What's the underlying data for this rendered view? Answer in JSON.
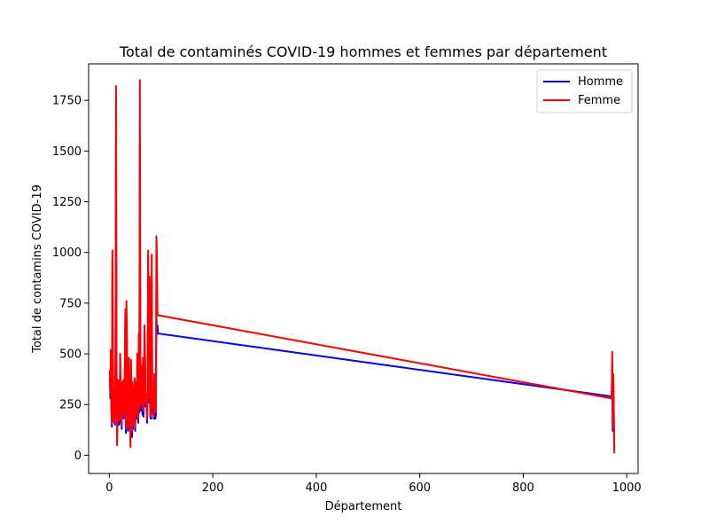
{
  "chart_data": {
    "type": "line",
    "title": "Total de contaminés COVID-19 hommes et femmes par département",
    "xlabel": "Département",
    "ylabel": "Total de contamins COVID-19",
    "xlim": [
      -40,
      1022
    ],
    "ylim": [
      -90,
      1930
    ],
    "xticks": [
      0,
      200,
      400,
      600,
      800,
      1000
    ],
    "yticks": [
      0,
      250,
      500,
      750,
      1000,
      1250,
      1500,
      1750
    ],
    "grid": false,
    "legend_position": "top-right",
    "series": [
      {
        "name": "Homme",
        "color": "#0000ff",
        "x": [
          1,
          2,
          3,
          4,
          5,
          6,
          7,
          8,
          9,
          10,
          11,
          12,
          13,
          14,
          15,
          16,
          17,
          18,
          19,
          20,
          21,
          22,
          23,
          24,
          25,
          26,
          27,
          28,
          29,
          30,
          31,
          32,
          33,
          34,
          35,
          36,
          37,
          38,
          39,
          40,
          41,
          42,
          43,
          44,
          45,
          46,
          47,
          48,
          49,
          50,
          51,
          52,
          53,
          54,
          55,
          56,
          57,
          58,
          59,
          60,
          61,
          62,
          63,
          64,
          65,
          66,
          67,
          68,
          69,
          70,
          71,
          72,
          73,
          74,
          75,
          76,
          77,
          78,
          79,
          80,
          81,
          82,
          83,
          84,
          85,
          86,
          87,
          88,
          89,
          90,
          91,
          92,
          93,
          94,
          95,
          971,
          972,
          973,
          974,
          976
        ],
        "values": [
          380,
          280,
          450,
          210,
          140,
          950,
          480,
          170,
          180,
          300,
          150,
          520,
          1540,
          400,
          110,
          200,
          340,
          180,
          150,
          160,
          480,
          200,
          220,
          130,
          350,
          260,
          340,
          180,
          270,
          400,
          680,
          110,
          620,
          580,
          210,
          120,
          310,
          440,
          190,
          130,
          100,
          430,
          180,
          90,
          330,
          130,
          280,
          170,
          350,
          120,
          320,
          230,
          180,
          470,
          200,
          160,
          550,
          210,
          1540,
          390,
          220,
          330,
          410,
          200,
          450,
          190,
          270,
          560,
          470,
          240,
          250,
          280,
          160,
          310,
          980,
          260,
          420,
          840,
          200,
          180,
          180,
          860,
          280,
          210,
          210,
          180,
          380,
          300,
          180,
          200,
          690,
          600,
          640,
          600,
          600,
          290,
          450,
          120,
          380,
          30
        ]
      },
      {
        "name": "Femme",
        "color": "#ff0000",
        "x": [
          1,
          2,
          3,
          4,
          5,
          6,
          7,
          8,
          9,
          10,
          11,
          12,
          13,
          14,
          15,
          16,
          17,
          18,
          19,
          20,
          21,
          22,
          23,
          24,
          25,
          26,
          27,
          28,
          29,
          30,
          31,
          32,
          33,
          34,
          35,
          36,
          37,
          38,
          39,
          40,
          41,
          42,
          43,
          44,
          45,
          46,
          47,
          48,
          49,
          50,
          51,
          52,
          53,
          54,
          55,
          56,
          57,
          58,
          59,
          60,
          61,
          62,
          63,
          64,
          65,
          66,
          67,
          68,
          69,
          70,
          71,
          72,
          73,
          74,
          75,
          76,
          77,
          78,
          79,
          80,
          81,
          82,
          83,
          84,
          85,
          86,
          87,
          88,
          89,
          90,
          91,
          92,
          93,
          94,
          95,
          971,
          972,
          973,
          974,
          976
        ],
        "values": [
          420,
          300,
          520,
          240,
          160,
          1010,
          500,
          200,
          160,
          330,
          170,
          560,
          1820,
          450,
          50,
          230,
          370,
          200,
          170,
          180,
          500,
          230,
          250,
          150,
          360,
          300,
          370,
          200,
          300,
          430,
          720,
          130,
          760,
          620,
          230,
          140,
          350,
          480,
          210,
          150,
          40,
          470,
          200,
          120,
          360,
          150,
          300,
          190,
          380,
          140,
          360,
          260,
          200,
          500,
          220,
          180,
          600,
          230,
          1850,
          430,
          250,
          360,
          440,
          230,
          480,
          220,
          310,
          640,
          500,
          260,
          270,
          300,
          180,
          330,
          1010,
          280,
          440,
          880,
          220,
          190,
          220,
          990,
          310,
          240,
          240,
          190,
          400,
          330,
          210,
          230,
          1080,
          980,
          700,
          690,
          690,
          280,
          510,
          140,
          400,
          10
        ]
      }
    ]
  }
}
